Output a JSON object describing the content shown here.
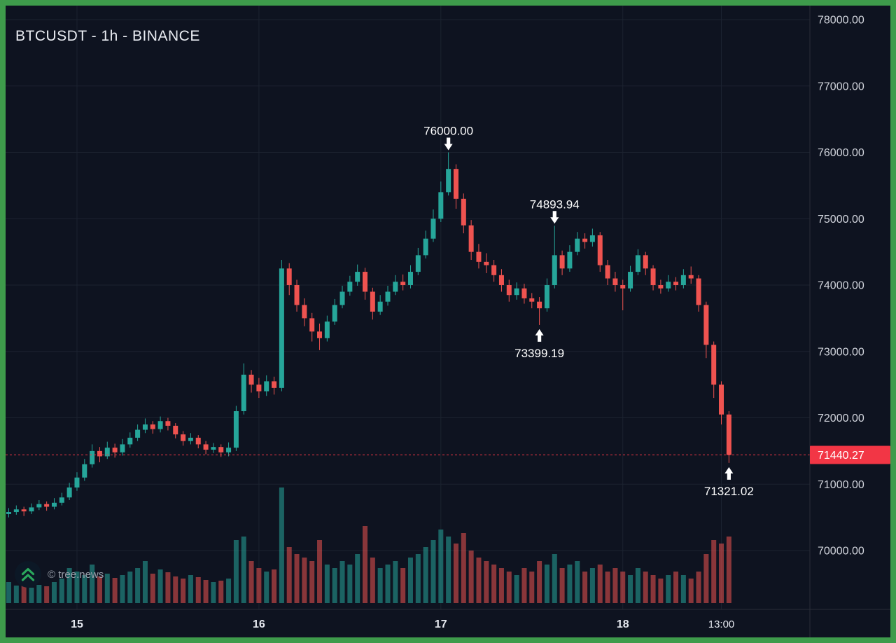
{
  "header": {
    "title": "BTCUSDT - 1h - BINANCE"
  },
  "watermark": {
    "copyright": "© tree.news"
  },
  "colors": {
    "frame": "#3e9b4b",
    "background": "#0e1320",
    "grid": "#1c2330",
    "separator": "#2a2e39",
    "axis_text": "#d1d4dc",
    "up": "#26a69a",
    "down": "#ef5350",
    "price_line": "#f23645",
    "annotation": "#ffffff",
    "title": "#e9ecf2",
    "watermark_text": "#9aa0ab",
    "logo_green": "#2aa85c",
    "logo_circle": "#0c1826"
  },
  "price_axis": {
    "labels": [
      "78000.00",
      "77000.00",
      "76000.00",
      "75000.00",
      "74000.00",
      "73000.00",
      "72000.00",
      "71000.00",
      "70000.00"
    ],
    "prices": [
      78000,
      77000,
      76000,
      75000,
      74000,
      73000,
      72000,
      71000,
      70000
    ]
  },
  "time_axis": {
    "labels": [
      {
        "text": "15",
        "index": 9,
        "major": true
      },
      {
        "text": "16",
        "index": 33,
        "major": true
      },
      {
        "text": "17",
        "index": 57,
        "major": true
      },
      {
        "text": "18",
        "index": 81,
        "major": true
      },
      {
        "text": "13:00",
        "index": 94,
        "major": false
      }
    ]
  },
  "price_line": {
    "value": "71440.27",
    "price": 71440.27
  },
  "annotations": [
    {
      "text": "76000.00",
      "index": 58,
      "price": 76000,
      "arrow": "down"
    },
    {
      "text": "74893.94",
      "index": 72,
      "price": 74893.94,
      "arrow": "down"
    },
    {
      "text": "73399.19",
      "index": 70,
      "price": 73399.19,
      "arrow": "up"
    },
    {
      "text": "71321.02",
      "index": 95,
      "price": 71321.02,
      "arrow": "up"
    }
  ],
  "chart_data": {
    "type": "candlestick+volume",
    "symbol": "BTCUSDT",
    "interval": "1h",
    "exchange": "BINANCE",
    "title": "BTCUSDT - 1h - BINANCE",
    "ylim": [
      69100,
      78200
    ],
    "grid": true,
    "last_price": 71440.27,
    "marked_levels": [
      76000.0,
      74893.94,
      73399.19,
      71321.02
    ],
    "candles": [
      [
        70550,
        70640,
        70500,
        70580
      ],
      [
        70580,
        70680,
        70540,
        70620
      ],
      [
        70620,
        70660,
        70520,
        70590
      ],
      [
        70590,
        70710,
        70550,
        70650
      ],
      [
        70650,
        70760,
        70610,
        70700
      ],
      [
        70700,
        70740,
        70600,
        70660
      ],
      [
        70660,
        70790,
        70620,
        70720
      ],
      [
        70720,
        70870,
        70680,
        70800
      ],
      [
        70800,
        71020,
        70760,
        70950
      ],
      [
        70950,
        71180,
        70900,
        71100
      ],
      [
        71100,
        71380,
        71050,
        71300
      ],
      [
        71300,
        71600,
        71250,
        71500
      ],
      [
        71500,
        71560,
        71330,
        71420
      ],
      [
        71420,
        71640,
        71380,
        71550
      ],
      [
        71550,
        71610,
        71400,
        71480
      ],
      [
        71480,
        71680,
        71430,
        71600
      ],
      [
        71600,
        71780,
        71550,
        71700
      ],
      [
        71700,
        71900,
        71650,
        71820
      ],
      [
        71820,
        71990,
        71770,
        71900
      ],
      [
        71900,
        71950,
        71760,
        71830
      ],
      [
        71830,
        72020,
        71780,
        71950
      ],
      [
        71950,
        72000,
        71810,
        71880
      ],
      [
        71880,
        71920,
        71690,
        71750
      ],
      [
        71750,
        71800,
        71580,
        71650
      ],
      [
        71650,
        71770,
        71600,
        71700
      ],
      [
        71700,
        71740,
        71540,
        71600
      ],
      [
        71600,
        71650,
        71450,
        71520
      ],
      [
        71520,
        71620,
        71470,
        71560
      ],
      [
        71560,
        71600,
        71410,
        71480
      ],
      [
        71480,
        71630,
        71420,
        71550
      ],
      [
        71550,
        72180,
        71500,
        72100
      ],
      [
        72100,
        72820,
        72050,
        72650
      ],
      [
        72650,
        72720,
        72380,
        72500
      ],
      [
        72500,
        72600,
        72300,
        72400
      ],
      [
        72400,
        72640,
        72330,
        72550
      ],
      [
        72550,
        72620,
        72350,
        72450
      ],
      [
        72450,
        74380,
        72400,
        74250
      ],
      [
        74250,
        74330,
        73850,
        74000
      ],
      [
        74000,
        74080,
        73600,
        73700
      ],
      [
        73700,
        73800,
        73380,
        73500
      ],
      [
        73500,
        73580,
        73150,
        73300
      ],
      [
        73300,
        73420,
        73020,
        73200
      ],
      [
        73200,
        73540,
        73150,
        73450
      ],
      [
        73450,
        73790,
        73400,
        73700
      ],
      [
        73700,
        73990,
        73650,
        73900
      ],
      [
        73900,
        74140,
        73840,
        74050
      ],
      [
        74050,
        74310,
        73990,
        74200
      ],
      [
        74200,
        74260,
        73780,
        73900
      ],
      [
        73900,
        73960,
        73480,
        73600
      ],
      [
        73600,
        73850,
        73550,
        73750
      ],
      [
        73750,
        73990,
        73690,
        73900
      ],
      [
        73900,
        74150,
        73850,
        74050
      ],
      [
        74050,
        74160,
        73920,
        74000
      ],
      [
        74000,
        74300,
        73950,
        74200
      ],
      [
        74200,
        74560,
        74150,
        74450
      ],
      [
        74450,
        74820,
        74400,
        74700
      ],
      [
        74700,
        75140,
        74650,
        75000
      ],
      [
        75000,
        75560,
        74950,
        75400
      ],
      [
        75400,
        76000,
        75350,
        75750
      ],
      [
        75750,
        75820,
        75150,
        75300
      ],
      [
        75300,
        75380,
        74780,
        74900
      ],
      [
        74900,
        74980,
        74380,
        74500
      ],
      [
        74500,
        74620,
        74250,
        74350
      ],
      [
        74350,
        74480,
        74180,
        74300
      ],
      [
        74300,
        74380,
        74050,
        74150
      ],
      [
        74150,
        74240,
        73900,
        74000
      ],
      [
        74000,
        74080,
        73750,
        73850
      ],
      [
        73850,
        74040,
        73780,
        73950
      ],
      [
        73950,
        74020,
        73720,
        73800
      ],
      [
        73800,
        73880,
        73650,
        73750
      ],
      [
        73750,
        73820,
        73399.19,
        73650
      ],
      [
        73650,
        74100,
        73600,
        74000
      ],
      [
        74000,
        74893.94,
        73950,
        74450
      ],
      [
        74450,
        74520,
        74150,
        74250
      ],
      [
        74250,
        74600,
        74200,
        74500
      ],
      [
        74500,
        74800,
        74450,
        74700
      ],
      [
        74700,
        74780,
        74550,
        74650
      ],
      [
        74650,
        74850,
        74580,
        74750
      ],
      [
        74750,
        74800,
        74200,
        74300
      ],
      [
        74300,
        74380,
        74000,
        74100
      ],
      [
        74100,
        74200,
        73900,
        74000
      ],
      [
        74000,
        74080,
        73620,
        73950
      ],
      [
        73950,
        74290,
        73900,
        74200
      ],
      [
        74200,
        74540,
        74150,
        74450
      ],
      [
        74450,
        74500,
        74150,
        74250
      ],
      [
        74250,
        74300,
        73920,
        74000
      ],
      [
        74000,
        74080,
        73870,
        73950
      ],
      [
        73950,
        74150,
        73900,
        74050
      ],
      [
        74050,
        74120,
        73920,
        74000
      ],
      [
        74000,
        74240,
        73950,
        74150
      ],
      [
        74150,
        74280,
        74020,
        74100
      ],
      [
        74100,
        74150,
        73600,
        73700
      ],
      [
        73700,
        73750,
        72900,
        73100
      ],
      [
        73100,
        73150,
        72300,
        72500
      ],
      [
        72500,
        72550,
        71900,
        72050
      ],
      [
        72050,
        72100,
        71321.02,
        71440.27
      ]
    ],
    "volumes": [
      300,
      250,
      280,
      220,
      260,
      240,
      300,
      350,
      500,
      450,
      400,
      550,
      380,
      420,
      360,
      400,
      450,
      500,
      600,
      420,
      480,
      440,
      380,
      350,
      400,
      370,
      330,
      300,
      320,
      350,
      900,
      950,
      600,
      500,
      450,
      480,
      1650,
      800,
      700,
      650,
      600,
      900,
      550,
      500,
      600,
      550,
      700,
      1100,
      650,
      500,
      550,
      600,
      500,
      650,
      700,
      800,
      900,
      1050,
      950,
      850,
      1000,
      750,
      650,
      600,
      550,
      500,
      450,
      400,
      500,
      450,
      600,
      550,
      700,
      500,
      550,
      600,
      450,
      500,
      550,
      450,
      500,
      450,
      400,
      500,
      450,
      400,
      350,
      400,
      450,
      400,
      350,
      450,
      700,
      900,
      850,
      950
    ]
  }
}
